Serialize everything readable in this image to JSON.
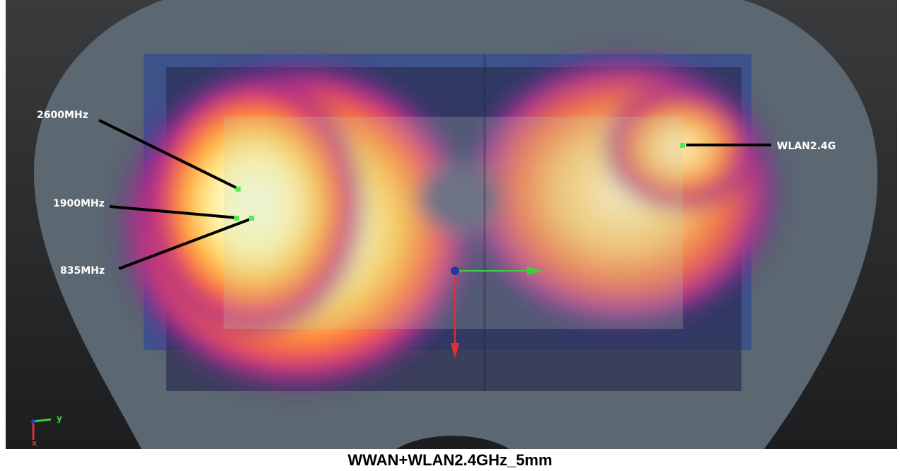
{
  "labels": {
    "probe_2600": "2600MHz",
    "probe_1900": "1900MHz",
    "probe_835": "835MHz",
    "probe_wlan": "WLAN2.4G"
  },
  "axis_indicator": {
    "y": "y",
    "x": "x"
  },
  "caption": "WWAN+WLAN2.4GHz_5mm"
}
